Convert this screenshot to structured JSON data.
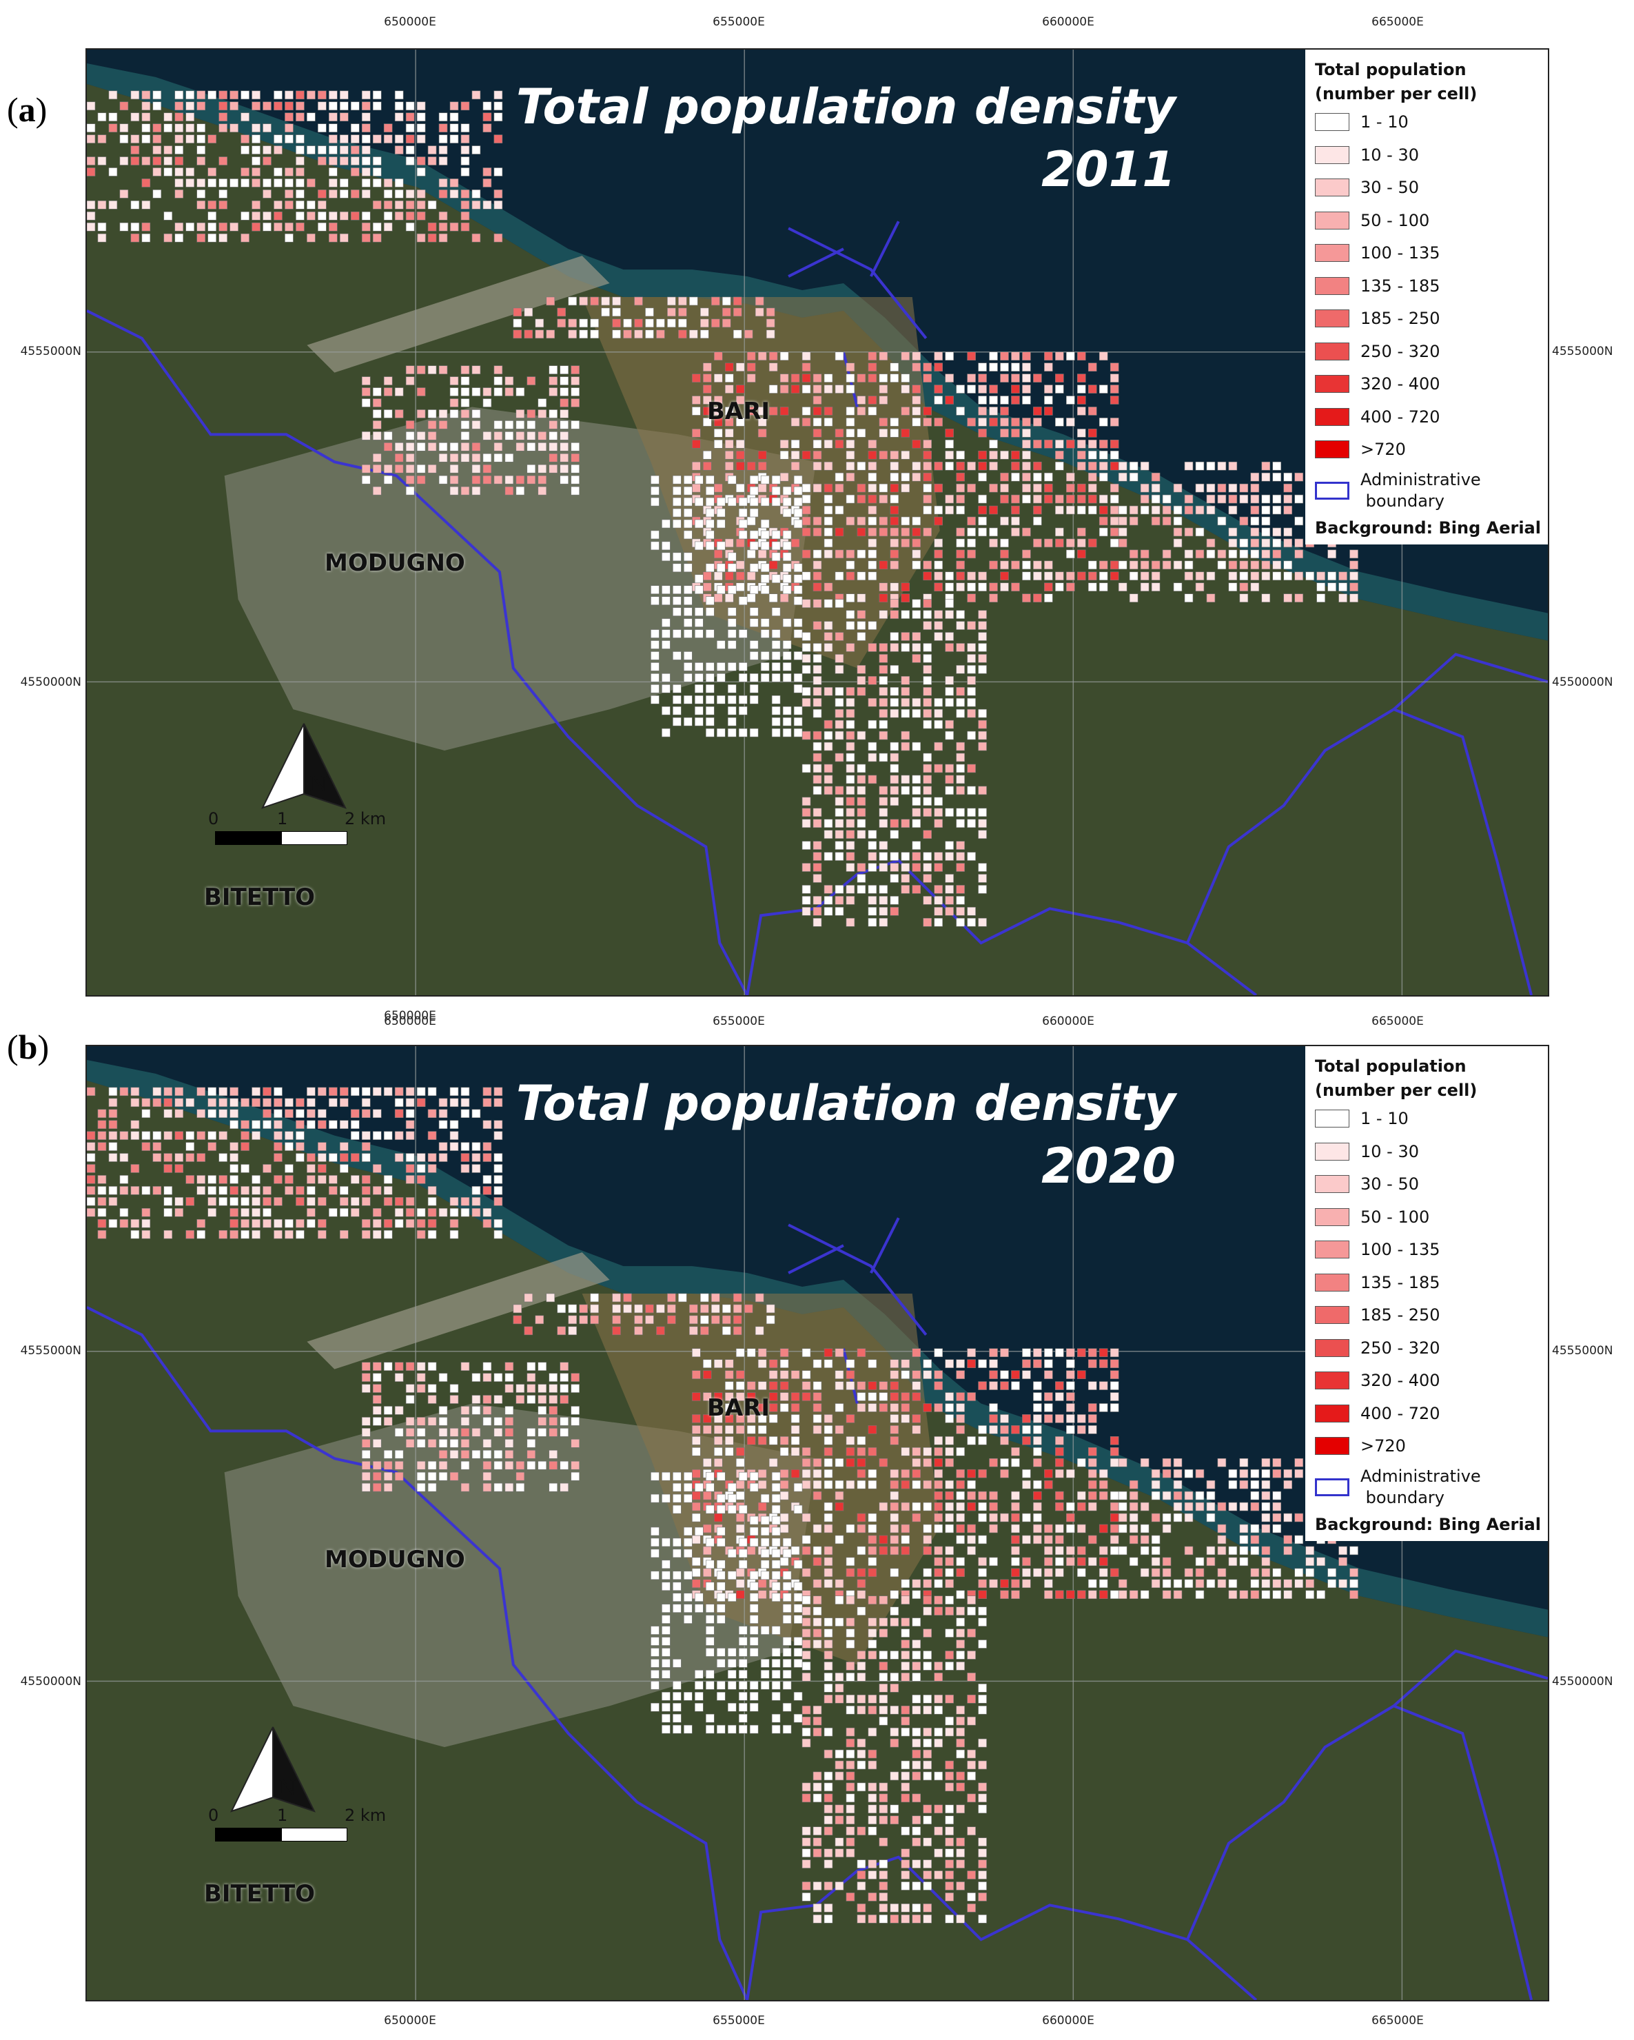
{
  "panels": [
    {
      "letter": "a",
      "title_line1": "Total population  density",
      "title_line2": "2011",
      "year": 2011
    },
    {
      "letter": "b",
      "title_line1": "Total population density",
      "title_line2": "2020",
      "year": 2020
    }
  ],
  "axes": {
    "easting_labels": [
      "650000E",
      "655000E",
      "660000E",
      "665000E"
    ],
    "northing_labels": [
      "4555000N",
      "4550000N"
    ]
  },
  "places": {
    "bari": "BARI",
    "modugno": "MODUGNO",
    "bitetto": "BITETTO"
  },
  "legend": {
    "title_line1": "Total population",
    "title_line2": "(number per cell)",
    "classes": [
      {
        "label": "1 - 10",
        "color": "#ffffff"
      },
      {
        "label": "10 - 30",
        "color": "#fde6e6"
      },
      {
        "label": "30 - 50",
        "color": "#fbcaca"
      },
      {
        "label": "50 - 100",
        "color": "#f8b0b0"
      },
      {
        "label": "100 - 135",
        "color": "#f59898"
      },
      {
        "label": "135 - 185",
        "color": "#f28282"
      },
      {
        "label": "185 - 250",
        "color": "#ef6a6a"
      },
      {
        "label": "250 - 320",
        "color": "#eb5050"
      },
      {
        "label": "320 - 400",
        "color": "#e83434"
      },
      {
        "label": "400 - 720",
        "color": "#e51a1a"
      },
      {
        "label": ">720",
        "color": "#e40000"
      }
    ],
    "boundary_label_line1": "Administrative",
    "boundary_label_line2": "boundary",
    "boundary_color": "#3b34d0",
    "background_note": "Background: Bing Aerial"
  },
  "scale": {
    "north_letter": "N",
    "tick_0": "0",
    "tick_1": "1",
    "tick_2": "2 km"
  },
  "colors": {
    "sea": "#0b2436",
    "sea_shallow": "#1e5a62",
    "land": "#3b4a2c",
    "urban": "#8e8f84",
    "boundary": "#3b34d0"
  }
}
